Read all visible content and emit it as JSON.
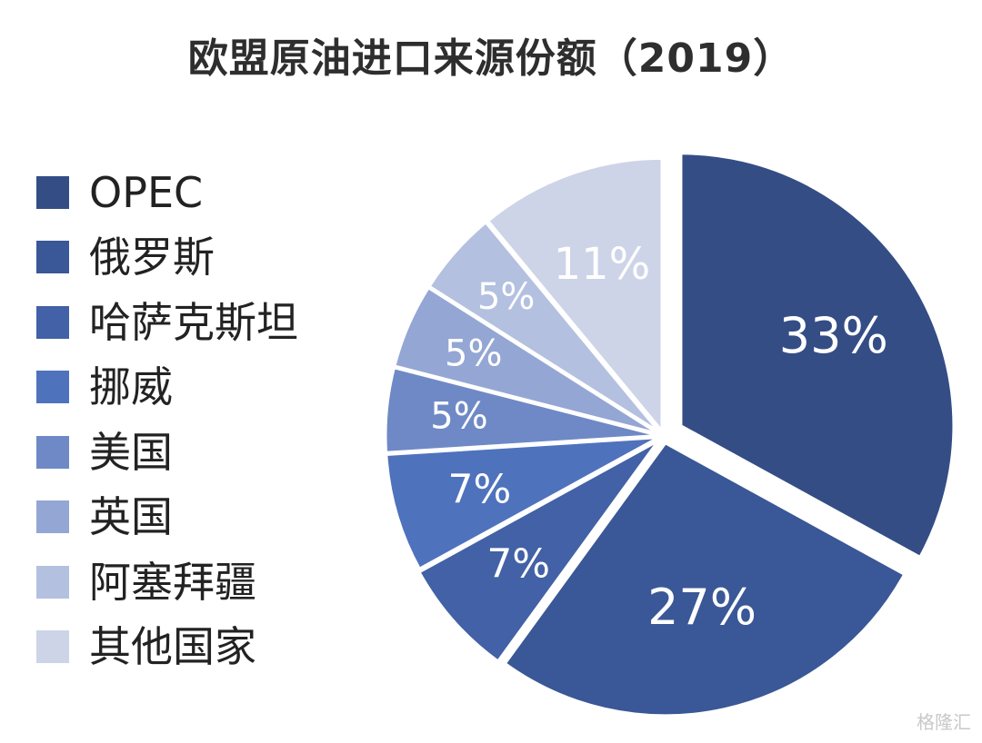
{
  "chart_data": {
    "type": "pie",
    "title": "欧盟原油进口来源份额（2019）",
    "categories": [
      "OPEC",
      "俄罗斯",
      "哈萨克斯坦",
      "挪威",
      "美国",
      "英国",
      "阿塞拜疆",
      "其他国家"
    ],
    "values": [
      33,
      27,
      7,
      7,
      5,
      5,
      5,
      11
    ],
    "labels": [
      "33%",
      "27%",
      "7%",
      "7%",
      "5%",
      "5%",
      "5%",
      "11%"
    ],
    "colors": [
      "#344d85",
      "#3a5797",
      "#4261a6",
      "#4f72bd",
      "#6f89c6",
      "#94a6d4",
      "#b3c0e0",
      "#cdd4e8"
    ],
    "legend_position": "left"
  },
  "watermark": "格隆汇"
}
